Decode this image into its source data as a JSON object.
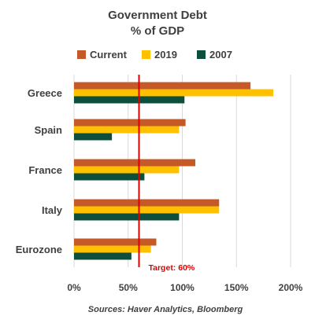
{
  "chart_data": {
    "type": "bar",
    "orientation": "horizontal",
    "title": [
      "Government Debt",
      "% of GDP"
    ],
    "categories": [
      "Greece",
      "Spain",
      "France",
      "Italy",
      "Eurozone"
    ],
    "series": [
      {
        "name": "Current",
        "color": "#C55A28",
        "values": [
          163,
          103,
          112,
          134,
          76
        ]
      },
      {
        "name": "2019",
        "color": "#FFC000",
        "values": [
          184,
          97,
          97,
          134,
          71
        ]
      },
      {
        "name": "2007",
        "color": "#0D4F3C",
        "values": [
          102,
          35,
          65,
          97,
          53
        ]
      }
    ],
    "x_ticks": [
      "0%",
      "50%",
      "100%",
      "150%",
      "200%"
    ],
    "xlim": [
      0,
      200
    ],
    "grid": "vertical",
    "legend": "top",
    "target": {
      "value": 60,
      "label": "Target: 60%",
      "color": "#E00000"
    },
    "source": "Sources: Haver Analytics, Bloomberg"
  }
}
